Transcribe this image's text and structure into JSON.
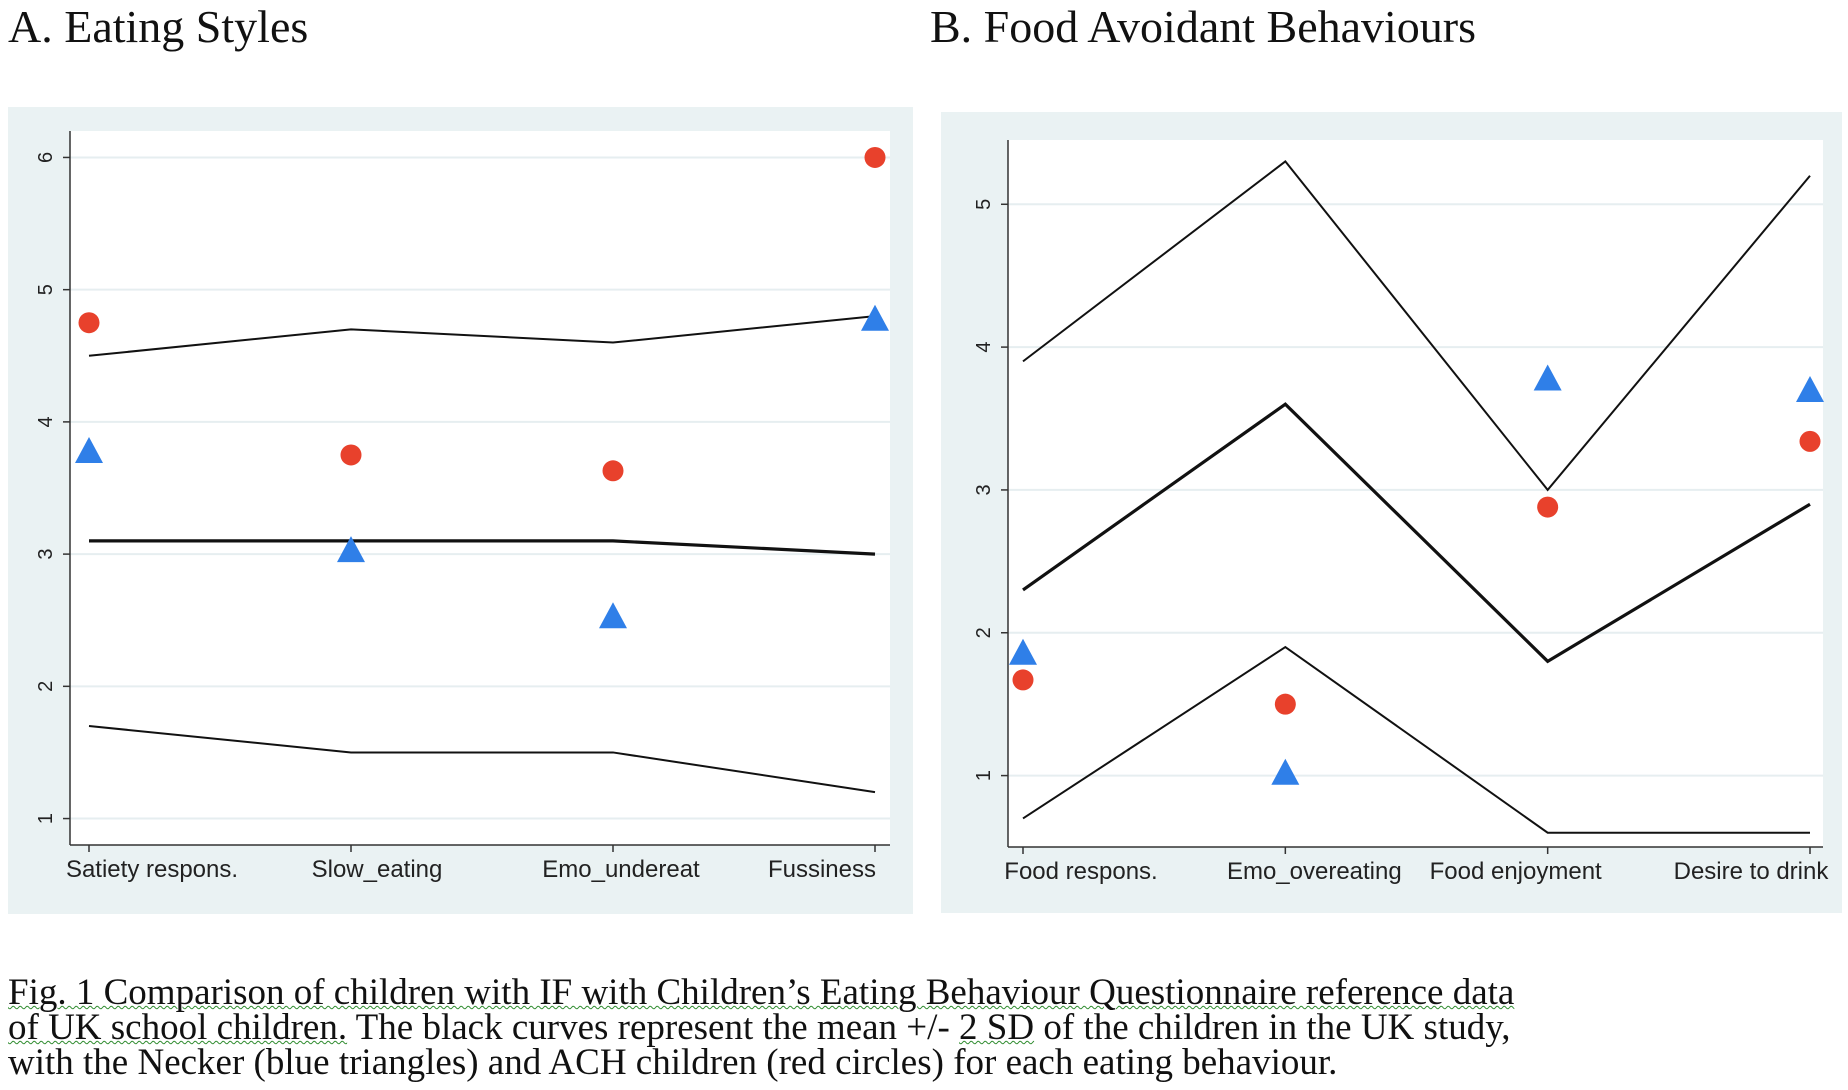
{
  "chart_data": [
    {
      "type": "line",
      "title": "A. Eating Styles",
      "xlabel": "",
      "ylabel": "",
      "categories": [
        "Satiety respons.",
        "Slow_eating",
        "Emo_undereat",
        "Fussiness"
      ],
      "ylim": [
        0.8,
        6.2
      ],
      "yticks": [
        1,
        2,
        3,
        4,
        5,
        6
      ],
      "grid": true,
      "series": [
        {
          "kind": "line",
          "role": "upper",
          "color": "#111111",
          "values": [
            4.5,
            4.7,
            4.6,
            4.8
          ]
        },
        {
          "kind": "line",
          "role": "mean",
          "color": "#111111",
          "values": [
            3.1,
            3.1,
            3.1,
            3.0
          ]
        },
        {
          "kind": "line",
          "role": "lower",
          "color": "#111111",
          "values": [
            1.7,
            1.5,
            1.5,
            1.2
          ]
        },
        {
          "kind": "marker",
          "marker": "triangle",
          "color": "#2f7fe8",
          "values": [
            3.78,
            3.03,
            2.53,
            4.78
          ]
        },
        {
          "kind": "marker",
          "marker": "circle",
          "color": "#e8412c",
          "values": [
            4.75,
            3.75,
            3.63,
            6.0
          ]
        }
      ]
    },
    {
      "type": "line",
      "title": "B. Food Avoidant Behaviours",
      "xlabel": "",
      "ylabel": "",
      "categories": [
        "Food respons.",
        "Emo_overeating",
        "Food enjoyment",
        "Desire to drink"
      ],
      "ylim": [
        0.5,
        5.45
      ],
      "yticks": [
        1,
        2,
        3,
        4,
        5
      ],
      "grid": true,
      "series": [
        {
          "kind": "line",
          "role": "upper",
          "color": "#111111",
          "values": [
            3.9,
            5.3,
            3.0,
            5.2
          ]
        },
        {
          "kind": "line",
          "role": "mean",
          "color": "#111111",
          "values": [
            2.3,
            3.6,
            1.8,
            2.9
          ]
        },
        {
          "kind": "line",
          "role": "lower",
          "color": "#111111",
          "values": [
            0.7,
            1.9,
            0.6,
            0.6
          ]
        },
        {
          "kind": "marker",
          "marker": "triangle",
          "color": "#2f7fe8",
          "values": [
            1.86,
            1.02,
            3.78,
            3.7
          ]
        },
        {
          "kind": "marker",
          "marker": "circle",
          "color": "#e8412c",
          "values": [
            1.67,
            1.5,
            2.88,
            3.34
          ]
        }
      ]
    }
  ],
  "caption": {
    "line1": "Fig. 1 Comparison of children with IF with Children’s Eating Behaviour Questionnaire reference data",
    "line2_pre": "of UK school children.",
    "line2_mid": " The black curves represent the mean +/- ",
    "line2_sd": "2 SD",
    "line2_post": " of the children in the UK study,",
    "line3": "with the Necker (blue triangles) and ACH children (red circles) for each eating behaviour."
  }
}
